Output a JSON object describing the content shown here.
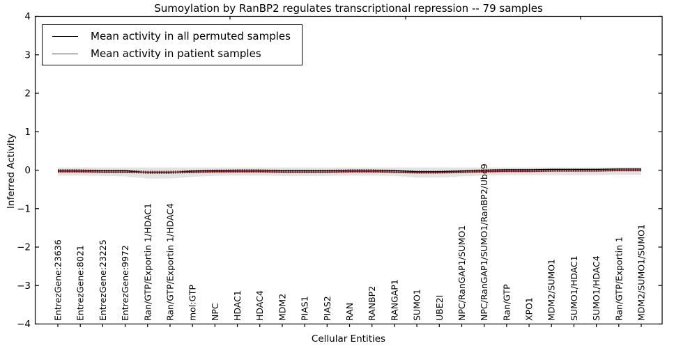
{
  "chart_data": {
    "type": "line",
    "title": "Sumoylation by RanBP2 regulates transcriptional repression -- 79 samples",
    "xlabel": "Cellular Entities",
    "ylabel": "Inferred Activity",
    "ylim": [
      -4,
      4
    ],
    "yticks": [
      -4,
      -3,
      -2,
      -1,
      0,
      1,
      2,
      3,
      4
    ],
    "ytick_labels": [
      "−4",
      "−3",
      "−2",
      "−1",
      "0",
      "1",
      "2",
      "3",
      "4"
    ],
    "grid": false,
    "legend_position": "upper left",
    "categories": [
      "EntrezGene:23636",
      "EntrezGene:8021",
      "EntrezGene:23225",
      "EntrezGene:9972",
      "Ran/GTP/Exportin 1/HDAC1",
      "Ran/GTP/Exportin 1/HDAC4",
      "mol:GTP",
      "NPC",
      "HDAC1",
      "HDAC4",
      "MDM2",
      "PIAS1",
      "PIAS2",
      "RAN",
      "RANBP2",
      "RANGAP1",
      "SUMO1",
      "UBE2I",
      "NPC/RanGAP1/SUMO1",
      "NPC/RanGAP1/SUMO1/RanBP2/Ubc9",
      "Ran/GTP",
      "XPO1",
      "MDM2/SUMO1",
      "SUMO1/HDAC1",
      "SUMO1/HDAC4",
      "Ran/GTP/Exportin 1",
      "MDM2/SUMO1/SUMO1"
    ],
    "series": [
      {
        "name": "Mean activity in all permuted samples",
        "color": "#000000",
        "values": [
          0.0,
          0.0,
          -0.01,
          -0.01,
          -0.06,
          -0.06,
          -0.02,
          -0.01,
          0.0,
          0.0,
          -0.01,
          -0.01,
          -0.01,
          0.0,
          0.0,
          -0.01,
          -0.04,
          -0.04,
          -0.02,
          0.0,
          0.01,
          0.01,
          0.02,
          0.02,
          0.02,
          0.03,
          0.03
        ]
      },
      {
        "name": "Mean activity in patient samples",
        "color": "#ff0000",
        "values": [
          -0.04,
          -0.04,
          -0.05,
          -0.05,
          -0.05,
          -0.05,
          -0.05,
          -0.04,
          -0.04,
          -0.04,
          -0.05,
          -0.05,
          -0.05,
          -0.04,
          -0.04,
          -0.05,
          -0.06,
          -0.06,
          -0.05,
          -0.04,
          -0.03,
          -0.03,
          -0.02,
          -0.02,
          -0.02,
          -0.01,
          -0.01
        ]
      }
    ],
    "band": {
      "name": "permutation-std-band",
      "color": "#000000",
      "opacity": 0.11,
      "upper": [
        0.07,
        0.07,
        0.07,
        0.07,
        0.07,
        0.07,
        0.07,
        0.07,
        0.07,
        0.07,
        0.07,
        0.07,
        0.07,
        0.07,
        0.07,
        0.07,
        0.07,
        0.07,
        0.07,
        0.07,
        0.07,
        0.07,
        0.07,
        0.07,
        0.07,
        0.07,
        0.07
      ],
      "lower": [
        -0.14,
        -0.14,
        -0.15,
        -0.16,
        -0.22,
        -0.22,
        -0.17,
        -0.15,
        -0.14,
        -0.14,
        -0.15,
        -0.15,
        -0.15,
        -0.14,
        -0.14,
        -0.15,
        -0.19,
        -0.19,
        -0.16,
        -0.14,
        -0.13,
        -0.13,
        -0.13,
        -0.13,
        -0.13,
        -0.12,
        -0.12
      ]
    }
  }
}
